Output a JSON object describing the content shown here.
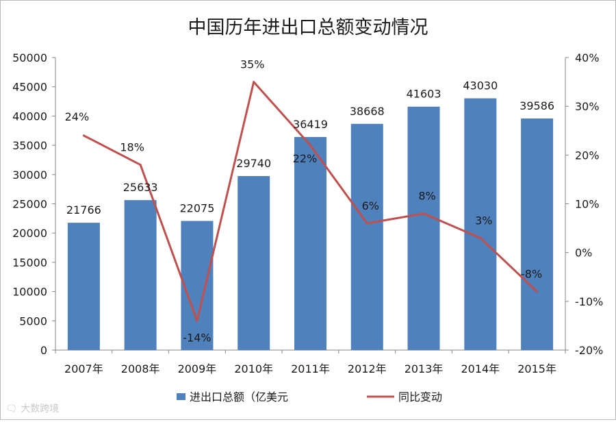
{
  "chart_data": {
    "type": "bar",
    "title": "中国历年进出口总额变动情况",
    "categories": [
      "2007年",
      "2008年",
      "2009年",
      "2010年",
      "2011年",
      "2012年",
      "2013年",
      "2014年",
      "2015年"
    ],
    "series": [
      {
        "name": "进出口总额（亿美元",
        "type": "bar",
        "axis": "left",
        "values": [
          21766,
          25633,
          22075,
          29740,
          36419,
          38668,
          41603,
          43030,
          39586
        ],
        "labels": [
          "21766",
          "25633",
          "22075",
          "29740",
          "36419",
          "38668",
          "41603",
          "43030",
          "39586"
        ],
        "color": "#4f81bd"
      },
      {
        "name": "同比变动",
        "type": "line",
        "axis": "right",
        "values": [
          24,
          18,
          -14,
          35,
          22,
          6,
          8,
          3,
          -8
        ],
        "labels": [
          "24%",
          "18%",
          "-14%",
          "35%",
          "22%",
          "6%",
          "8%",
          "3%",
          "-8%"
        ],
        "color": "#c0504d"
      }
    ],
    "y_left": {
      "min": 0,
      "max": 50000,
      "ticks": [
        "0",
        "5000",
        "10000",
        "15000",
        "20000",
        "25000",
        "30000",
        "35000",
        "40000",
        "45000",
        "50000"
      ]
    },
    "y_right": {
      "min": -20,
      "max": 40,
      "unit": "%",
      "ticks": [
        "-20%",
        "-10%",
        "0%",
        "10%",
        "20%",
        "30%",
        "40%"
      ]
    },
    "legend": "bottom",
    "grid": false
  },
  "watermark": {
    "text": "大数跨境",
    "icon": "brand-logo-icon"
  }
}
